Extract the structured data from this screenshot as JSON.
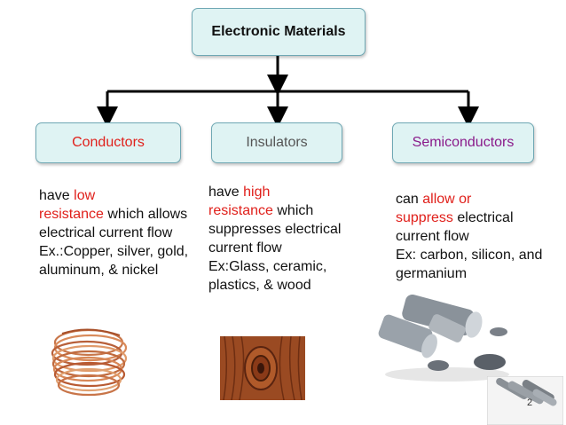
{
  "root": {
    "label": "Electronic Materials"
  },
  "categories": [
    {
      "label": "Conductors",
      "color": "#e0201b",
      "desc": {
        "p1": "have ",
        "h1": "low",
        "p2": "",
        "h2": "resistance",
        "p3": " which allows electrical current flow",
        "ex": "Ex.:Copper, silver, gold, aluminum, & nickel"
      }
    },
    {
      "label": "Insulators",
      "color": "#555555",
      "desc": {
        "p1": "have ",
        "h1": "high",
        "p2": "",
        "h2": "resistance",
        "p3": " which suppresses electrical current flow",
        "ex": "Ex:Glass, ceramic, plastics, & wood"
      }
    },
    {
      "label": "Semiconductors",
      "color": "#8a1a8a",
      "desc": {
        "p1": "can ",
        "h1": "allow or",
        "p2": "",
        "h2": "suppress",
        "p3": " electrical current flow",
        "ex": "Ex: carbon, silicon, and germanium"
      }
    }
  ],
  "page_number": "2"
}
